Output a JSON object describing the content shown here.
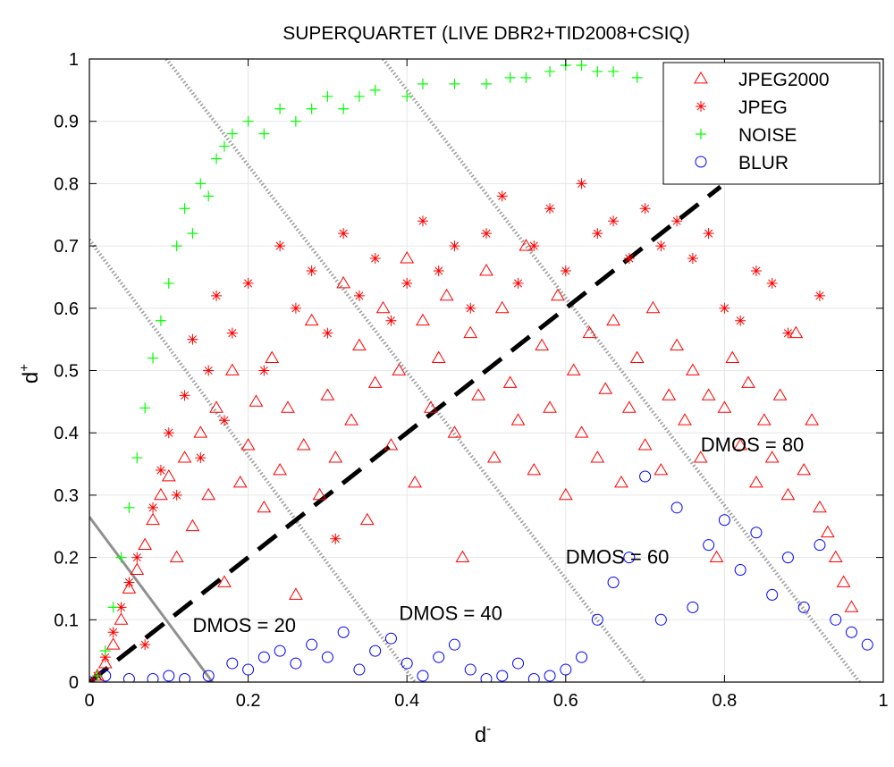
{
  "chart_data": {
    "type": "scatter",
    "title": "SUPERQUARTET (LIVE DBR2+TID2008+CSIQ)",
    "xlabel_base": "d",
    "xlabel_sup": "-",
    "ylabel_base": "d",
    "ylabel_sup": "+",
    "xlim": [
      0,
      1
    ],
    "ylim": [
      0,
      1
    ],
    "xticks": [
      0,
      0.2,
      0.4,
      0.6,
      0.8,
      1
    ],
    "xtick_labels": [
      "0",
      "0.2",
      "0.4",
      "0.6",
      "0.8",
      "1"
    ],
    "yticks": [
      0,
      0.1,
      0.2,
      0.3,
      0.4,
      0.5,
      0.6,
      0.7,
      0.8,
      0.9,
      1
    ],
    "ytick_labels": [
      "0",
      "0.1",
      "0.2",
      "0.3",
      "0.4",
      "0.5",
      "0.6",
      "0.7",
      "0.8",
      "0.9",
      "1"
    ],
    "grid": true,
    "legend_position": "top-right",
    "series": [
      {
        "name": "JPEG2000",
        "marker": "triangle",
        "color": "#ff0000",
        "points": [
          [
            0.01,
            0.01
          ],
          [
            0.02,
            0.03
          ],
          [
            0.03,
            0.06
          ],
          [
            0.04,
            0.1
          ],
          [
            0.05,
            0.15
          ],
          [
            0.06,
            0.18
          ],
          [
            0.07,
            0.22
          ],
          [
            0.08,
            0.26
          ],
          [
            0.09,
            0.3
          ],
          [
            0.1,
            0.33
          ],
          [
            0.11,
            0.2
          ],
          [
            0.12,
            0.36
          ],
          [
            0.13,
            0.25
          ],
          [
            0.14,
            0.4
          ],
          [
            0.15,
            0.3
          ],
          [
            0.16,
            0.44
          ],
          [
            0.17,
            0.16
          ],
          [
            0.18,
            0.5
          ],
          [
            0.19,
            0.32
          ],
          [
            0.2,
            0.38
          ],
          [
            0.21,
            0.45
          ],
          [
            0.22,
            0.28
          ],
          [
            0.23,
            0.52
          ],
          [
            0.24,
            0.34
          ],
          [
            0.25,
            0.44
          ],
          [
            0.26,
            0.14
          ],
          [
            0.27,
            0.38
          ],
          [
            0.28,
            0.58
          ],
          [
            0.29,
            0.3
          ],
          [
            0.3,
            0.46
          ],
          [
            0.31,
            0.36
          ],
          [
            0.32,
            0.64
          ],
          [
            0.33,
            0.42
          ],
          [
            0.34,
            0.54
          ],
          [
            0.35,
            0.26
          ],
          [
            0.36,
            0.48
          ],
          [
            0.37,
            0.6
          ],
          [
            0.38,
            0.38
          ],
          [
            0.39,
            0.5
          ],
          [
            0.4,
            0.68
          ],
          [
            0.41,
            0.32
          ],
          [
            0.42,
            0.58
          ],
          [
            0.43,
            0.44
          ],
          [
            0.44,
            0.52
          ],
          [
            0.45,
            0.62
          ],
          [
            0.46,
            0.4
          ],
          [
            0.47,
            0.2
          ],
          [
            0.48,
            0.56
          ],
          [
            0.49,
            0.46
          ],
          [
            0.5,
            0.66
          ],
          [
            0.51,
            0.36
          ],
          [
            0.52,
            0.6
          ],
          [
            0.53,
            0.48
          ],
          [
            0.54,
            0.42
          ],
          [
            0.55,
            0.7
          ],
          [
            0.56,
            0.34
          ],
          [
            0.57,
            0.54
          ],
          [
            0.58,
            0.44
          ],
          [
            0.59,
            0.62
          ],
          [
            0.6,
            0.3
          ],
          [
            0.61,
            0.5
          ],
          [
            0.62,
            0.4
          ],
          [
            0.63,
            0.56
          ],
          [
            0.64,
            0.36
          ],
          [
            0.65,
            0.47
          ],
          [
            0.66,
            0.58
          ],
          [
            0.67,
            0.32
          ],
          [
            0.68,
            0.44
          ],
          [
            0.69,
            0.52
          ],
          [
            0.7,
            0.38
          ],
          [
            0.71,
            0.6
          ],
          [
            0.72,
            0.34
          ],
          [
            0.73,
            0.46
          ],
          [
            0.74,
            0.54
          ],
          [
            0.75,
            0.42
          ],
          [
            0.76,
            0.5
          ],
          [
            0.77,
            0.36
          ],
          [
            0.78,
            0.46
          ],
          [
            0.79,
            0.2
          ],
          [
            0.8,
            0.44
          ],
          [
            0.81,
            0.52
          ],
          [
            0.82,
            0.38
          ],
          [
            0.83,
            0.48
          ],
          [
            0.84,
            0.32
          ],
          [
            0.85,
            0.42
          ],
          [
            0.86,
            0.36
          ],
          [
            0.87,
            0.46
          ],
          [
            0.88,
            0.3
          ],
          [
            0.89,
            0.56
          ],
          [
            0.9,
            0.34
          ],
          [
            0.91,
            0.42
          ],
          [
            0.92,
            0.28
          ],
          [
            0.93,
            0.24
          ],
          [
            0.94,
            0.2
          ],
          [
            0.95,
            0.16
          ],
          [
            0.96,
            0.12
          ]
        ]
      },
      {
        "name": "JPEG",
        "marker": "asterisk",
        "color": "#ff0000",
        "points": [
          [
            0.01,
            0.01
          ],
          [
            0.02,
            0.04
          ],
          [
            0.03,
            0.08
          ],
          [
            0.04,
            0.12
          ],
          [
            0.05,
            0.16
          ],
          [
            0.06,
            0.2
          ],
          [
            0.07,
            0.06
          ],
          [
            0.08,
            0.28
          ],
          [
            0.09,
            0.34
          ],
          [
            0.1,
            0.4
          ],
          [
            0.11,
            0.3
          ],
          [
            0.12,
            0.46
          ],
          [
            0.13,
            0.55
          ],
          [
            0.14,
            0.36
          ],
          [
            0.15,
            0.5
          ],
          [
            0.16,
            0.62
          ],
          [
            0.17,
            0.42
          ],
          [
            0.18,
            0.56
          ],
          [
            0.2,
            0.64
          ],
          [
            0.22,
            0.5
          ],
          [
            0.24,
            0.7
          ],
          [
            0.26,
            0.6
          ],
          [
            0.28,
            0.66
          ],
          [
            0.3,
            0.56
          ],
          [
            0.31,
            0.23
          ],
          [
            0.32,
            0.72
          ],
          [
            0.34,
            0.62
          ],
          [
            0.36,
            0.68
          ],
          [
            0.38,
            0.58
          ],
          [
            0.4,
            0.64
          ],
          [
            0.42,
            0.74
          ],
          [
            0.44,
            0.66
          ],
          [
            0.46,
            0.7
          ],
          [
            0.48,
            0.6
          ],
          [
            0.5,
            0.72
          ],
          [
            0.52,
            0.78
          ],
          [
            0.54,
            0.64
          ],
          [
            0.56,
            0.7
          ],
          [
            0.58,
            0.76
          ],
          [
            0.6,
            0.66
          ],
          [
            0.62,
            0.8
          ],
          [
            0.64,
            0.72
          ],
          [
            0.66,
            0.74
          ],
          [
            0.68,
            0.68
          ],
          [
            0.7,
            0.76
          ],
          [
            0.72,
            0.7
          ],
          [
            0.74,
            0.74
          ],
          [
            0.76,
            0.68
          ],
          [
            0.78,
            0.72
          ],
          [
            0.8,
            0.6
          ],
          [
            0.82,
            0.58
          ],
          [
            0.84,
            0.66
          ],
          [
            0.86,
            0.64
          ],
          [
            0.88,
            0.56
          ],
          [
            0.92,
            0.62
          ]
        ]
      },
      {
        "name": "NOISE",
        "marker": "plus",
        "color": "#00ff00",
        "points": [
          [
            0.01,
            0.01
          ],
          [
            0.02,
            0.05
          ],
          [
            0.03,
            0.12
          ],
          [
            0.04,
            0.2
          ],
          [
            0.05,
            0.28
          ],
          [
            0.06,
            0.36
          ],
          [
            0.07,
            0.44
          ],
          [
            0.08,
            0.52
          ],
          [
            0.09,
            0.58
          ],
          [
            0.1,
            0.64
          ],
          [
            0.11,
            0.7
          ],
          [
            0.12,
            0.76
          ],
          [
            0.13,
            0.72
          ],
          [
            0.14,
            0.8
          ],
          [
            0.15,
            0.78
          ],
          [
            0.16,
            0.84
          ],
          [
            0.17,
            0.86
          ],
          [
            0.18,
            0.88
          ],
          [
            0.2,
            0.9
          ],
          [
            0.22,
            0.88
          ],
          [
            0.24,
            0.92
          ],
          [
            0.26,
            0.9
          ],
          [
            0.28,
            0.92
          ],
          [
            0.3,
            0.94
          ],
          [
            0.32,
            0.92
          ],
          [
            0.34,
            0.94
          ],
          [
            0.36,
            0.95
          ],
          [
            0.4,
            0.94
          ],
          [
            0.42,
            0.96
          ],
          [
            0.46,
            0.96
          ],
          [
            0.5,
            0.96
          ],
          [
            0.53,
            0.97
          ],
          [
            0.55,
            0.97
          ],
          [
            0.58,
            0.98
          ],
          [
            0.6,
            0.99
          ],
          [
            0.62,
            0.99
          ],
          [
            0.64,
            0.98
          ],
          [
            0.66,
            0.98
          ],
          [
            0.69,
            0.97
          ]
        ]
      },
      {
        "name": "BLUR",
        "marker": "circle",
        "color": "#0000ff",
        "points": [
          [
            0.0,
            0.0
          ],
          [
            0.02,
            0.01
          ],
          [
            0.05,
            0.005
          ],
          [
            0.08,
            0.005
          ],
          [
            0.1,
            0.01
          ],
          [
            0.12,
            0.005
          ],
          [
            0.15,
            0.01
          ],
          [
            0.18,
            0.03
          ],
          [
            0.2,
            0.02
          ],
          [
            0.22,
            0.04
          ],
          [
            0.24,
            0.05
          ],
          [
            0.26,
            0.03
          ],
          [
            0.28,
            0.06
          ],
          [
            0.3,
            0.04
          ],
          [
            0.32,
            0.08
          ],
          [
            0.34,
            0.02
          ],
          [
            0.36,
            0.05
          ],
          [
            0.38,
            0.07
          ],
          [
            0.4,
            0.03
          ],
          [
            0.42,
            0.01
          ],
          [
            0.44,
            0.04
          ],
          [
            0.46,
            0.06
          ],
          [
            0.48,
            0.02
          ],
          [
            0.5,
            0.005
          ],
          [
            0.52,
            0.01
          ],
          [
            0.54,
            0.03
          ],
          [
            0.56,
            0.005
          ],
          [
            0.58,
            0.01
          ],
          [
            0.6,
            0.02
          ],
          [
            0.62,
            0.04
          ],
          [
            0.64,
            0.1
          ],
          [
            0.66,
            0.16
          ],
          [
            0.68,
            0.2
          ],
          [
            0.7,
            0.33
          ],
          [
            0.72,
            0.1
          ],
          [
            0.74,
            0.28
          ],
          [
            0.76,
            0.12
          ],
          [
            0.78,
            0.22
          ],
          [
            0.8,
            0.26
          ],
          [
            0.82,
            0.18
          ],
          [
            0.84,
            0.24
          ],
          [
            0.86,
            0.14
          ],
          [
            0.88,
            0.2
          ],
          [
            0.9,
            0.12
          ],
          [
            0.92,
            0.22
          ],
          [
            0.94,
            0.1
          ],
          [
            0.96,
            0.08
          ],
          [
            0.98,
            0.06
          ]
        ]
      }
    ],
    "annotations": [
      {
        "text": "DMOS = 20",
        "x": 0.13,
        "y": 0.08
      },
      {
        "text": "DMOS = 40",
        "x": 0.39,
        "y": 0.1
      },
      {
        "text": "DMOS = 60",
        "x": 0.6,
        "y": 0.19
      },
      {
        "text": "DMOS = 80",
        "x": 0.77,
        "y": 0.37
      }
    ],
    "reference_lines": [
      {
        "style": "solid-gray",
        "from": [
          0,
          0.265
        ],
        "to": [
          0.155,
          0
        ]
      },
      {
        "style": "dotted-gray",
        "from": [
          0,
          0.71
        ],
        "to": [
          0.41,
          0
        ]
      },
      {
        "style": "dotted-gray",
        "from": [
          0.097,
          1
        ],
        "to": [
          0.7,
          0
        ]
      },
      {
        "style": "dotted-gray",
        "from": [
          0.37,
          1
        ],
        "to": [
          0.97,
          0
        ]
      },
      {
        "style": "dashed-black",
        "from": [
          0,
          0
        ],
        "to": [
          0.795,
          0.795
        ]
      }
    ]
  }
}
